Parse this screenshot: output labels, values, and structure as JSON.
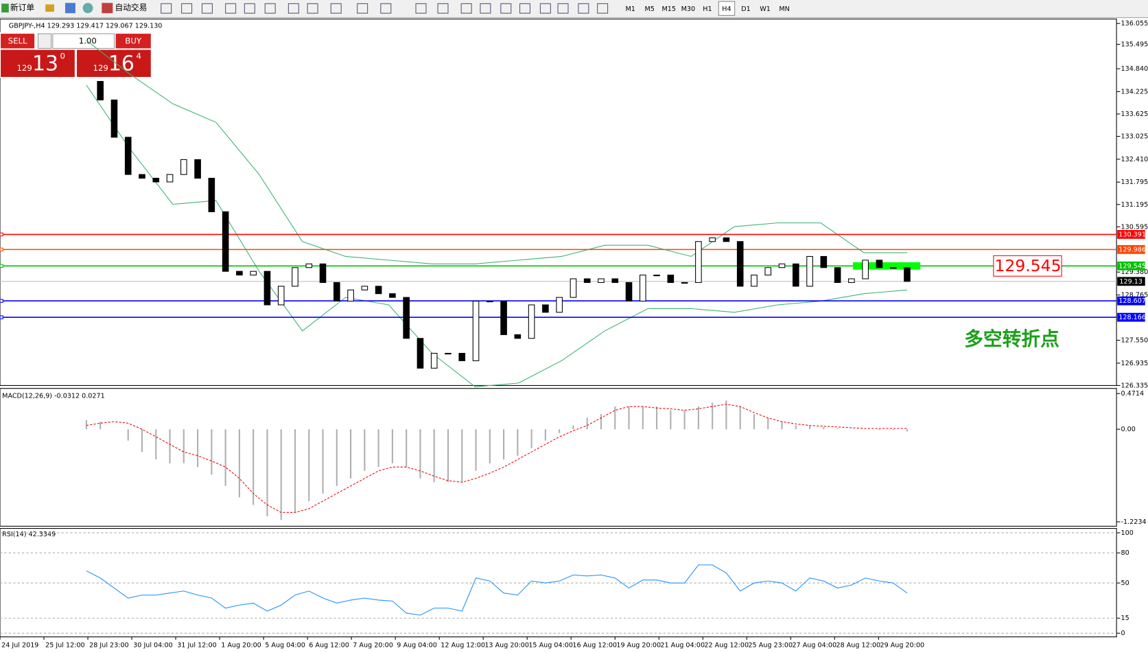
{
  "toolbar": {
    "new_order": "新订单",
    "auto_trade": "自动交易",
    "timeframes": [
      "M1",
      "M5",
      "M15",
      "M30",
      "H1",
      "H4",
      "D1",
      "W1",
      "MN"
    ],
    "active_timeframe": 5
  },
  "order_panel": {
    "sell": "SELL",
    "buy": "BUY",
    "lots": "1.00",
    "sell_price": {
      "prefix": "129",
      "big": "13",
      "sup": "0"
    },
    "buy_price": {
      "prefix": "129",
      "big": "16",
      "sup": "4"
    }
  },
  "chart_data": {
    "type": "candlestick",
    "header": "GBPJPY-,H4  129.293 129.417 129.067 129.130",
    "ylim": [
      126.335,
      136.055
    ],
    "yticks": [
      {
        "value": 136.055,
        "label": "136.055"
      },
      {
        "value": 135.495,
        "label": "135.495"
      },
      {
        "value": 134.84,
        "label": "134.840"
      },
      {
        "value": 134.225,
        "label": "134.225"
      },
      {
        "value": 133.625,
        "label": "133.625"
      },
      {
        "value": 133.025,
        "label": "133.025"
      },
      {
        "value": 132.41,
        "label": "132.410"
      },
      {
        "value": 131.795,
        "label": "131.795"
      },
      {
        "value": 131.195,
        "label": "131.195"
      },
      {
        "value": 130.595,
        "label": "130.595"
      },
      {
        "value": 129.38,
        "label": "129.380"
      },
      {
        "value": 128.765,
        "label": "128.765"
      },
      {
        "value": 127.55,
        "label": "127.550"
      },
      {
        "value": 126.935,
        "label": "126.935"
      },
      {
        "value": 126.335,
        "label": "126.335"
      }
    ],
    "x": [
      "24 Jul 2019",
      "25 Jul 12:00",
      "28 Jul 23:00",
      "30 Jul 04:00",
      "31 Jul 12:00",
      "1 Aug 20:00",
      "5 Aug 04:00",
      "6 Aug 12:00",
      "7 Aug 20:00",
      "9 Aug 04:00",
      "12 Aug 12:00",
      "13 Aug 20:00",
      "15 Aug 04:00",
      "16 Aug 12:00",
      "19 Aug 20:00",
      "21 Aug 04:00",
      "22 Aug 12:00",
      "25 Aug 23:00",
      "27 Aug 04:00",
      "28 Aug 12:00",
      "29 Aug 20:00"
    ],
    "closes": [
      134.5,
      134.0,
      133.0,
      132.0,
      131.9,
      131.8,
      132.0,
      132.4,
      131.9,
      131.0,
      129.4,
      129.3,
      129.4,
      128.5,
      129.0,
      129.5,
      129.6,
      129.1,
      128.6,
      128.9,
      129.0,
      128.8,
      128.7,
      127.6,
      126.8,
      127.2,
      127.2,
      127.0,
      128.6,
      128.6,
      127.7,
      127.6,
      128.5,
      128.3,
      128.7,
      129.2,
      129.1,
      129.2,
      129.1,
      128.6,
      129.3,
      129.3,
      129.1,
      129.1,
      130.2,
      130.3,
      130.2,
      129.0,
      129.3,
      129.5,
      129.6,
      129.0,
      129.8,
      129.5,
      129.1,
      129.2,
      129.7,
      129.5,
      129.5,
      129.13
    ],
    "band_upper": [
      135.6,
      134.7,
      133.9,
      133.4,
      132.0,
      130.2,
      129.8,
      129.7,
      129.6,
      129.6,
      129.7,
      129.8,
      130.1,
      130.1,
      129.8,
      130.6,
      130.7,
      130.7,
      129.9,
      129.9
    ],
    "band_lower": [
      134.4,
      132.7,
      131.2,
      131.3,
      129.4,
      127.8,
      128.7,
      128.5,
      127.2,
      126.3,
      126.4,
      127.0,
      127.8,
      128.4,
      128.4,
      128.3,
      128.5,
      128.6,
      128.8,
      128.9
    ],
    "levels": [
      {
        "value": 130.391,
        "color": "#ff0000"
      },
      {
        "value": 129.986,
        "color": "#ff4500"
      },
      {
        "value": 129.545,
        "color": "#00c000"
      },
      {
        "value": 128.607,
        "color": "#0000ff"
      },
      {
        "value": 128.166,
        "color": "#0000ff"
      }
    ],
    "current_price": 129.13,
    "highlight_price": 129.545,
    "annotation": "多空转折点",
    "macd": {
      "label": "MACD(12,26,9) -0.0312 0.0271",
      "ylim": [
        -1.2234,
        0.4714
      ],
      "yticks": [
        0.4714,
        {
          "value": 0,
          "label": "0.00"
        },
        -1.2234
      ],
      "histogram": [
        0.12,
        0.1,
        0.0,
        -0.15,
        -0.3,
        -0.4,
        -0.45,
        -0.45,
        -0.5,
        -0.6,
        -0.75,
        -0.9,
        -1.0,
        -1.15,
        -1.2,
        -1.1,
        -0.95,
        -0.85,
        -0.75,
        -0.65,
        -0.55,
        -0.5,
        -0.45,
        -0.5,
        -0.65,
        -0.7,
        -0.7,
        -0.7,
        -0.55,
        -0.45,
        -0.4,
        -0.35,
        -0.25,
        -0.15,
        -0.05,
        0.05,
        0.15,
        0.2,
        0.3,
        0.3,
        0.3,
        0.3,
        0.25,
        0.25,
        0.3,
        0.35,
        0.38,
        0.3,
        0.2,
        0.15,
        0.1,
        0.05,
        0.05,
        0.03,
        0.01,
        0.0,
        0.0,
        -0.01,
        -0.01,
        -0.03
      ],
      "signal": [
        0.05,
        0.08,
        0.1,
        0.08,
        0.0,
        -0.1,
        -0.2,
        -0.3,
        -0.35,
        -0.42,
        -0.5,
        -0.65,
        -0.85,
        -1.0,
        -1.1,
        -1.1,
        -1.05,
        -0.95,
        -0.85,
        -0.75,
        -0.65,
        -0.55,
        -0.5,
        -0.5,
        -0.55,
        -0.62,
        -0.68,
        -0.7,
        -0.65,
        -0.58,
        -0.5,
        -0.4,
        -0.3,
        -0.2,
        -0.1,
        -0.02,
        0.05,
        0.15,
        0.25,
        0.3,
        0.3,
        0.28,
        0.27,
        0.25,
        0.27,
        0.3,
        0.33,
        0.3,
        0.22,
        0.15,
        0.1,
        0.07,
        0.05,
        0.04,
        0.03,
        0.02,
        0.01,
        0.01,
        0.01,
        0.01
      ]
    },
    "rsi": {
      "label": "RSI(14) 42.3349",
      "ylim": [
        0,
        100
      ],
      "yticks": [
        100,
        80,
        50,
        15,
        0
      ],
      "values": [
        62,
        55,
        45,
        35,
        38,
        38,
        40,
        42,
        38,
        35,
        25,
        28,
        30,
        22,
        28,
        38,
        42,
        35,
        30,
        33,
        35,
        33,
        32,
        20,
        18,
        25,
        25,
        22,
        55,
        52,
        40,
        38,
        52,
        50,
        52,
        58,
        57,
        58,
        55,
        45,
        53,
        53,
        50,
        50,
        68,
        68,
        60,
        42,
        50,
        52,
        50,
        42,
        55,
        52,
        45,
        48,
        55,
        52,
        50,
        40
      ]
    }
  }
}
